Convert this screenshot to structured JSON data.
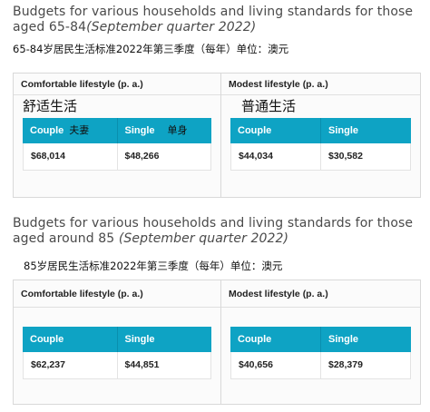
{
  "section1": {
    "title_main": "Budgets for various households and living standards for those aged 65-84",
    "title_paren": "(September quarter 2022)",
    "note": "65-84岁居民生活标准2022年第三季度（每年）单位：澳元",
    "comfortable": {
      "heading": "Comfortable lifestyle (p. a.)",
      "handnote": "舒适生活",
      "col1": "Couple",
      "col1_note": "夫妻",
      "col2": "Single",
      "col2_note": "单身",
      "val1": "$68,014",
      "val2": "$48,266"
    },
    "modest": {
      "heading": "Modest lifestyle (p. a.)",
      "handnote": "普通生活",
      "col1": "Couple",
      "col2": "Single",
      "val1": "$44,034",
      "val2": "$30,582"
    }
  },
  "section2": {
    "title_main": "Budgets for various households and living standards for those aged around 85",
    "title_paren": "(September quarter 2022)",
    "note": "85岁居民生活标准2022年第三季度（每年）单位：澳元",
    "comfortable": {
      "heading": "Comfortable lifestyle (p. a.)",
      "col1": "Couple",
      "col2": "Single",
      "val1": "$62,237",
      "val2": "$44,851"
    },
    "modest": {
      "heading": "Modest lifestyle (p. a.)",
      "col1": "Couple",
      "col2": "Single",
      "val1": "$40,656",
      "val2": "$28,379"
    }
  },
  "colors": {
    "header_bg": "#0ea3c4",
    "panel_bg": "#fbfbfb",
    "border": "#d9d9d9"
  }
}
